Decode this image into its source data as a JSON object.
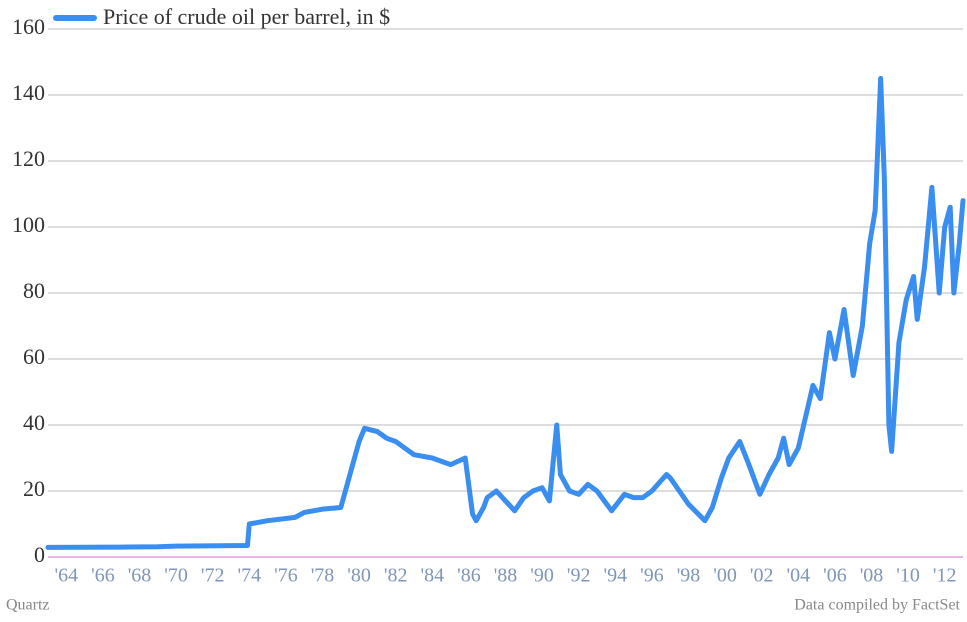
{
  "chart_data": {
    "type": "line",
    "legend": "top-left",
    "source": "Data compiled by FactSet",
    "credit": "Quartz",
    "grid": true,
    "x": [
      1963,
      1967,
      1969,
      1970,
      1973.9,
      1974,
      1975,
      1976.5,
      1977,
      1978,
      1979,
      1979.5,
      1980,
      1980.3,
      1981,
      1981.5,
      1982,
      1982.5,
      1983,
      1984,
      1985,
      1985.8,
      1986.2,
      1986.4,
      1986.8,
      1987,
      1987.5,
      1988,
      1988.5,
      1989,
      1989.5,
      1990,
      1990.4,
      1990.8,
      1991,
      1991.5,
      1992,
      1992.5,
      1993,
      1993.8,
      1994.5,
      1995,
      1995.5,
      1996,
      1996.8,
      1997,
      1997.5,
      1998,
      1998.9,
      1999.3,
      1999.8,
      2000.2,
      2000.8,
      2001.3,
      2001.9,
      2002.4,
      2002.9,
      2003.2,
      2003.5,
      2004,
      2004.8,
      2005.2,
      2005.7,
      2006,
      2006.5,
      2007,
      2007.5,
      2007.9,
      2008.2,
      2008.5,
      2008.7,
      2008.95,
      2009.1,
      2009.5,
      2009.9,
      2010.3,
      2010.5,
      2010.9,
      2011.3,
      2011.7,
      2012,
      2012.3,
      2012.5,
      2012.8,
      2013
    ],
    "series": [
      {
        "name": "Price of crude oil per barrel, in $",
        "color": "#3a8ef0",
        "values": [
          2.9,
          3.0,
          3.1,
          3.3,
          3.5,
          10,
          11,
          12,
          13.5,
          14.5,
          15,
          25,
          35,
          39,
          38,
          36,
          35,
          33,
          31,
          30,
          28,
          30,
          13,
          11,
          15,
          18,
          20,
          17,
          14,
          18,
          20,
          21,
          17,
          40,
          25,
          20,
          19,
          22,
          20,
          14,
          19,
          18,
          18,
          20,
          25,
          24,
          20,
          16,
          11,
          15,
          24,
          30,
          35,
          28,
          19,
          25,
          30,
          36,
          28,
          33,
          52,
          48,
          68,
          60,
          75,
          55,
          70,
          95,
          105,
          145,
          115,
          40,
          32,
          65,
          78,
          85,
          72,
          88,
          112,
          80,
          100,
          106,
          80,
          95,
          108
        ]
      }
    ],
    "xlim": [
      1963,
      2013
    ],
    "xticks": [
      {
        "value": 1964,
        "label": "'64"
      },
      {
        "value": 1966,
        "label": "'66"
      },
      {
        "value": 1968,
        "label": "'68"
      },
      {
        "value": 1970,
        "label": "'70"
      },
      {
        "value": 1972,
        "label": "'72"
      },
      {
        "value": 1974,
        "label": "'74"
      },
      {
        "value": 1976,
        "label": "'76"
      },
      {
        "value": 1978,
        "label": "'78"
      },
      {
        "value": 1980,
        "label": "'80"
      },
      {
        "value": 1982,
        "label": "'82"
      },
      {
        "value": 1984,
        "label": "'84"
      },
      {
        "value": 1986,
        "label": "'86"
      },
      {
        "value": 1988,
        "label": "'88"
      },
      {
        "value": 1990,
        "label": "'90"
      },
      {
        "value": 1992,
        "label": "'92"
      },
      {
        "value": 1994,
        "label": "'94"
      },
      {
        "value": 1996,
        "label": "'96"
      },
      {
        "value": 1998,
        "label": "'98"
      },
      {
        "value": 2000,
        "label": "'00"
      },
      {
        "value": 2002,
        "label": "'02"
      },
      {
        "value": 2004,
        "label": "'04"
      },
      {
        "value": 2006,
        "label": "'06"
      },
      {
        "value": 2008,
        "label": "'08"
      },
      {
        "value": 2010,
        "label": "'10"
      },
      {
        "value": 2012,
        "label": "'12"
      }
    ],
    "ylim": [
      0,
      160
    ],
    "yticks": [
      0,
      20,
      40,
      60,
      80,
      100,
      120,
      140,
      160
    ]
  }
}
